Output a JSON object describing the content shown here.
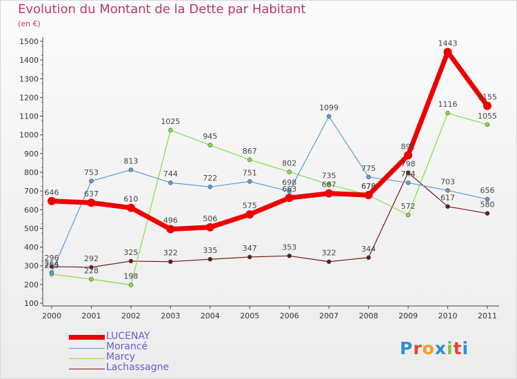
{
  "title": "Evolution du Montant de la Dette par Habitant",
  "subtitle": "(en €)",
  "logo": {
    "text": "Proxiti",
    "letter_colors": [
      "#2a8fd8",
      "#e8432d",
      "#f0a020",
      "#2a8fd8",
      "#7cc24a",
      "#e8432d",
      "#2a8fd8"
    ]
  },
  "chart_data": {
    "type": "line",
    "title": "Evolution du Montant de la Dette par Habitant",
    "ylabel": "(en €)",
    "x": [
      "2000",
      "2001",
      "2002",
      "2003",
      "2004",
      "2005",
      "2006",
      "2007",
      "2008",
      "2009",
      "2010",
      "2011"
    ],
    "ylim": [
      100,
      1500
    ],
    "yticks": [
      "100",
      "200",
      "300",
      "400",
      "500",
      "600",
      "700",
      "800",
      "900",
      "1000",
      "1100",
      "1200",
      "1300",
      "1400",
      "1500"
    ],
    "grid": false,
    "legend": "bottom-left",
    "series": [
      {
        "name": "LUCENAY",
        "color": "#ee0000",
        "values": [
          646,
          637,
          610,
          496,
          506,
          575,
          663,
          687,
          678,
          891,
          1443,
          1155
        ],
        "labels": [
          "646",
          "637",
          "610",
          "496",
          "506",
          "575",
          "663",
          "687",
          "678",
          "891",
          "1443",
          "1155"
        ]
      },
      {
        "name": "Morancé",
        "color": "#5b9bd5",
        "values": [
          264,
          753,
          813,
          744,
          722,
          751,
          698,
          1099,
          775,
          744,
          703,
          656
        ],
        "labels": [
          "264",
          "753",
          "813",
          "744",
          "722",
          "751",
          "698",
          "1099",
          "775",
          "744",
          "703",
          "656"
        ]
      },
      {
        "name": "Marcy",
        "color": "#88dd44",
        "values": [
          255,
          228,
          198,
          1025,
          945,
          867,
          802,
          735,
          678,
          572,
          1116,
          1055
        ],
        "labels": [
          "255",
          "228",
          "198",
          "1025",
          "945",
          "867",
          "802",
          "735",
          "678",
          "572",
          "1116",
          "1055"
        ]
      },
      {
        "name": "Lachassagne",
        "color": "#6b1a1a",
        "values": [
          296,
          292,
          325,
          322,
          335,
          347,
          353,
          322,
          344,
          798,
          617,
          580
        ],
        "labels": [
          "296",
          "292",
          "325",
          "322",
          "335",
          "347",
          "353",
          "322",
          "344",
          "798",
          "617",
          "580"
        ]
      }
    ]
  }
}
